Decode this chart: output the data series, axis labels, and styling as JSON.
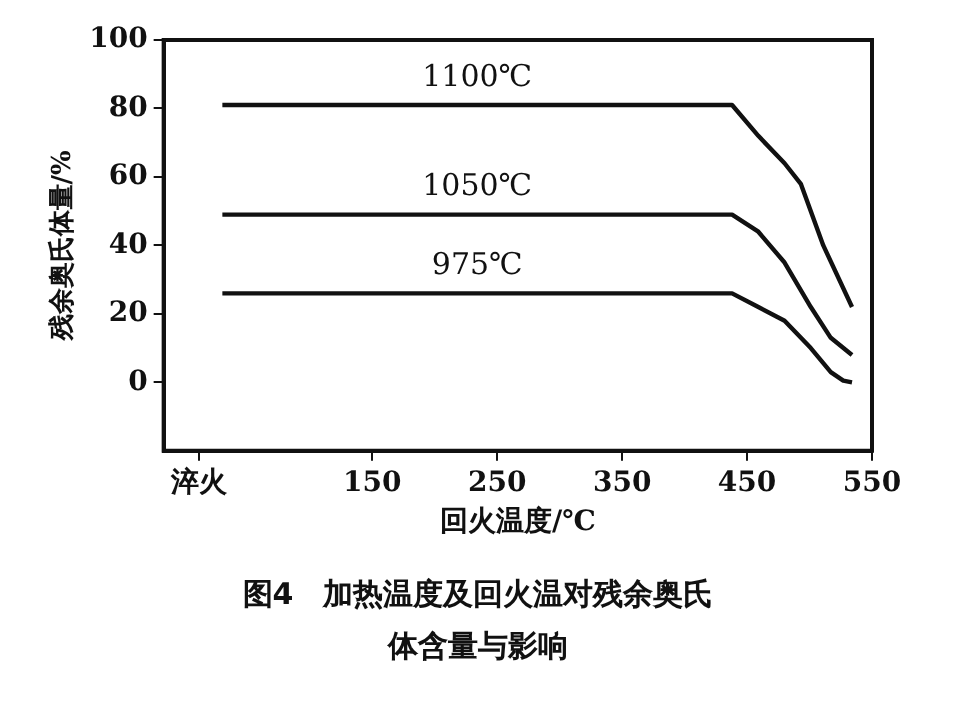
{
  "chart_data": {
    "type": "line",
    "title": "图4　加热温度及回火温对残余奥氏体含量与影响",
    "xlabel": "回火温度/℃",
    "ylabel": "残余奥氏体量/%",
    "series": [
      {
        "name": "1100℃",
        "color": "#111111",
        "x": [
          30,
          438,
          459,
          480,
          493,
          511,
          534
        ],
        "values": [
          81,
          81,
          72,
          64,
          58,
          40,
          22
        ]
      },
      {
        "name": "1050℃",
        "color": "#111111",
        "x": [
          30,
          438,
          459,
          480,
          501,
          517,
          534
        ],
        "values": [
          49,
          49,
          44,
          35,
          22,
          13,
          8
        ]
      },
      {
        "name": "975℃",
        "color": "#111111",
        "x": [
          30,
          438,
          459,
          480,
          501,
          517,
          527,
          534
        ],
        "values": [
          26,
          26,
          22,
          18,
          10,
          3,
          0.5,
          0
        ]
      }
    ],
    "xlim": [
      -17,
      550
    ],
    "xticks": [
      {
        "value": 11,
        "label": "淬火"
      },
      150,
      250,
      350,
      450,
      550
    ],
    "ylim": [
      -20,
      100
    ],
    "yticks": [
      0,
      20,
      40,
      60,
      80,
      100
    ],
    "grid": false,
    "legend": false,
    "marker": "none",
    "line_style": "solid"
  }
}
